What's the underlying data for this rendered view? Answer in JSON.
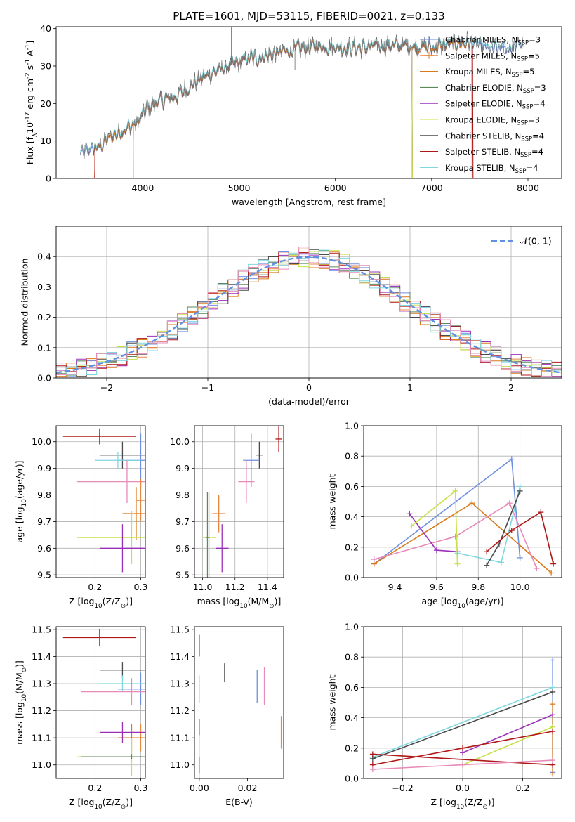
{
  "figure": {
    "title": "PLATE=1601, MJD=53115, FIBERID=0021, z=0.133"
  },
  "colors": {
    "chabrier_miles": "#6f8fe0",
    "salpeter_miles": "#e8873f",
    "kroupa_miles": "#d97a1c",
    "chabrier_elodie": "#5a8a5a",
    "salpeter_elodie": "#9b30b8",
    "kroupa_elodie": "#c8e04a",
    "chabrier_stelib": "#4a4a4a",
    "salpeter_stelib": "#b01818",
    "kroupa_stelib": "#7fd8e0",
    "pink": "#e88ab8",
    "normal_curve": "#6090e0",
    "grid": "#b0b0b0"
  },
  "chart_data": [
    {
      "id": "spectrum",
      "type": "line",
      "xlabel": "wavelength [Angstrom, rest frame]",
      "ylabel": "Flux [f$_\\lambda$10$^{-17}$ erg cm$^{-2}$ s$^{-1}$ A$^{-1}$]",
      "xlim": [
        3100,
        8350
      ],
      "ylim": [
        0,
        40.5
      ],
      "xticks": [
        4000,
        5000,
        6000,
        7000,
        8000
      ],
      "yticks": [
        0,
        10,
        20,
        30,
        40
      ],
      "grid": false,
      "legend_position": "upper-right",
      "legend": [
        {
          "label": "Chabrier MILES, N",
          "sub": "SSP",
          "suffix": "=3",
          "color": "chabrier_miles",
          "marker": "+"
        },
        {
          "label": "Salpeter MILES, N",
          "sub": "SSP",
          "suffix": "=5",
          "color": "salpeter_miles",
          "marker": "+"
        },
        {
          "label": "Kroupa MILES, N",
          "sub": "SSP",
          "suffix": "=5",
          "color": "kroupa_miles",
          "marker": ""
        },
        {
          "label": "Chabrier ELODIE, N",
          "sub": "SSP",
          "suffix": "=3",
          "color": "chabrier_elodie",
          "marker": ""
        },
        {
          "label": "Salpeter ELODIE, N",
          "sub": "SSP",
          "suffix": "=4",
          "color": "salpeter_elodie",
          "marker": ""
        },
        {
          "label": "Kroupa ELODIE, N",
          "sub": "SSP",
          "suffix": "=3",
          "color": "kroupa_elodie",
          "marker": ""
        },
        {
          "label": "Chabrier STELIB, N",
          "sub": "SSP",
          "suffix": "=4",
          "color": "chabrier_stelib",
          "marker": ""
        },
        {
          "label": "Salpeter STELIB, N",
          "sub": "SSP",
          "suffix": "=4",
          "color": "salpeter_stelib",
          "marker": ""
        },
        {
          "label": "Kroupa STELIB, N",
          "sub": "SSP",
          "suffix": "=4",
          "color": "kroupa_stelib",
          "marker": ""
        }
      ],
      "continuum": [
        [
          3350,
          6.5
        ],
        [
          3450,
          8
        ],
        [
          3550,
          8.5
        ],
        [
          3650,
          11
        ],
        [
          3800,
          13
        ],
        [
          3950,
          15
        ],
        [
          4050,
          19
        ],
        [
          4200,
          21
        ],
        [
          4350,
          22
        ],
        [
          4500,
          25
        ],
        [
          4700,
          28
        ],
        [
          4900,
          30
        ],
        [
          5100,
          32
        ],
        [
          5300,
          33
        ],
        [
          5500,
          34
        ],
        [
          5700,
          35
        ],
        [
          5900,
          35.5
        ],
        [
          6100,
          35
        ],
        [
          6300,
          35
        ],
        [
          6500,
          35.5
        ],
        [
          6800,
          35.5
        ],
        [
          7000,
          35
        ],
        [
          7200,
          36
        ],
        [
          7400,
          36.5
        ],
        [
          7600,
          34.5
        ],
        [
          7800,
          35
        ],
        [
          7950,
          36.5
        ]
      ],
      "spikes": [
        [
          4920,
          41
        ],
        [
          5590,
          41
        ],
        [
          5580,
          29
        ],
        [
          5050,
          30
        ]
      ]
    },
    {
      "id": "residuals",
      "type": "line",
      "xlabel": "(data-model)/error",
      "ylabel": "Normed distribution",
      "xlim": [
        -2.5,
        2.5
      ],
      "ylim": [
        0,
        0.5
      ],
      "xticks": [
        -2,
        -1,
        0,
        1,
        2
      ],
      "yticks": [
        0.0,
        0.1,
        0.2,
        0.3,
        0.4
      ],
      "grid": true,
      "legend_position": "upper-right",
      "legend": [
        {
          "label": "$\\mathcal{N}(0, 1)$",
          "color": "normal_curve",
          "dashed": true
        }
      ]
    },
    {
      "id": "age_vs_Z",
      "type": "scatter",
      "xlabel": "Z [log$_{10}$(Z/Z$_\\odot$)]",
      "ylabel": "age  [log$_{10}$(age/yr)]",
      "xlim": [
        0.115,
        0.31
      ],
      "ylim": [
        9.49,
        10.06
      ],
      "xticks": [
        0.2,
        0.3
      ],
      "yticks": [
        9.5,
        9.6,
        9.7,
        9.8,
        9.9,
        10.0
      ],
      "grid": true,
      "points": [
        {
          "x": 0.21,
          "y": 10.02,
          "ex": 0.08,
          "ey": 0.03,
          "color": "salpeter_stelib"
        },
        {
          "x": 0.26,
          "y": 9.95,
          "ex": 0.05,
          "ey": 0.05,
          "color": "chabrier_stelib"
        },
        {
          "x": 0.3,
          "y": 9.93,
          "ex": 0.05,
          "ey": 0.1,
          "color": "chabrier_miles"
        },
        {
          "x": 0.25,
          "y": 9.93,
          "ex": 0.05,
          "ey": 0.03,
          "color": "kroupa_stelib"
        },
        {
          "x": 0.27,
          "y": 9.85,
          "ex": 0.11,
          "ey": 0.08,
          "color": "pink"
        },
        {
          "x": 0.29,
          "y": 9.73,
          "ex": 0.03,
          "ey": 0.1,
          "color": "kroupa_miles"
        },
        {
          "x": 0.3,
          "y": 9.78,
          "ex": 0.01,
          "ey": 0.08,
          "color": "salpeter_miles"
        },
        {
          "x": 0.28,
          "y": 9.64,
          "ex": 0.12,
          "ey": 0.1,
          "color": "kroupa_elodie"
        },
        {
          "x": 0.26,
          "y": 9.6,
          "ex": 0.05,
          "ey": 0.09,
          "color": "salpeter_elodie"
        }
      ]
    },
    {
      "id": "age_vs_mass",
      "type": "scatter",
      "xlabel": "mass [log$_{10}$(M/M$_\\odot$)]",
      "ylabel": "",
      "xlim": [
        10.95,
        11.5
      ],
      "ylim": [
        9.49,
        10.06
      ],
      "xticks": [
        11.0,
        11.2,
        11.4
      ],
      "yticks": [
        9.5,
        9.6,
        9.7,
        9.8,
        9.9,
        10.0
      ],
      "grid": true,
      "points": [
        {
          "x": 11.47,
          "y": 10.01,
          "ex": 0.02,
          "ey": 0.05,
          "color": "salpeter_stelib"
        },
        {
          "x": 11.35,
          "y": 9.95,
          "ex": 0.02,
          "ey": 0.05,
          "color": "chabrier_stelib"
        },
        {
          "x": 11.3,
          "y": 9.93,
          "ex": 0.05,
          "ey": 0.1,
          "color": "chabrier_miles"
        },
        {
          "x": 11.27,
          "y": 9.85,
          "ex": 0.05,
          "ey": 0.08,
          "color": "pink"
        },
        {
          "x": 11.1,
          "y": 9.73,
          "ex": 0.04,
          "ey": 0.07,
          "color": "salpeter_miles"
        },
        {
          "x": 11.04,
          "y": 9.64,
          "ex": 0.04,
          "ey": 0.17,
          "color": "kroupa_elodie"
        },
        {
          "x": 11.03,
          "y": 9.64,
          "ex": 0.01,
          "ey": 0.17,
          "color": "chabrier_elodie"
        },
        {
          "x": 11.12,
          "y": 9.6,
          "ex": 0.04,
          "ey": 0.09,
          "color": "salpeter_elodie"
        }
      ]
    },
    {
      "id": "weight_vs_age",
      "type": "line",
      "xlabel": "age  [log$_{10}$(age/yr)]",
      "ylabel": "mass weight",
      "xlim": [
        9.25,
        10.2
      ],
      "ylim": [
        0,
        1
      ],
      "xticks": [
        9.4,
        9.6,
        9.8,
        10.0
      ],
      "yticks": [
        0.0,
        0.2,
        0.4,
        0.6,
        0.8,
        1.0
      ],
      "grid": true,
      "series": [
        {
          "color": "chabrier_miles",
          "x": [
            9.3,
            9.96,
            10.0
          ],
          "y": [
            0.09,
            0.78,
            0.13
          ]
        },
        {
          "color": "kroupa_miles",
          "x": [
            9.3,
            9.77,
            10.15
          ],
          "y": [
            0.09,
            0.49,
            0.03
          ]
        },
        {
          "color": "pink",
          "x": [
            9.3,
            9.69,
            9.95,
            10.08
          ],
          "y": [
            0.12,
            0.27,
            0.49,
            0.06
          ]
        },
        {
          "color": "salpeter_elodie",
          "x": [
            9.47,
            9.6,
            9.7
          ],
          "y": [
            0.42,
            0.18,
            0.17
          ]
        },
        {
          "color": "kroupa_elodie",
          "x": [
            9.48,
            9.69,
            9.7
          ],
          "y": [
            0.34,
            0.57,
            0.09
          ]
        },
        {
          "color": "kroupa_stelib",
          "x": [
            9.7,
            9.91,
            10.0
          ],
          "y": [
            0.16,
            0.1,
            0.6
          ]
        },
        {
          "color": "chabrier_stelib",
          "x": [
            9.84,
            9.9,
            10.0
          ],
          "y": [
            0.08,
            0.22,
            0.57
          ]
        },
        {
          "color": "salpeter_stelib",
          "x": [
            9.84,
            9.96,
            10.1,
            10.16
          ],
          "y": [
            0.17,
            0.31,
            0.43,
            0.09
          ]
        }
      ]
    },
    {
      "id": "mass_vs_Z",
      "type": "scatter",
      "xlabel": "Z [log$_{10}$(Z/Z$_\\odot$)]",
      "ylabel": "mass [log$_{10}$(M/M$_\\odot$)]",
      "xlim": [
        0.115,
        0.31
      ],
      "ylim": [
        10.95,
        11.51
      ],
      "xticks": [
        0.2,
        0.3
      ],
      "yticks": [
        11.0,
        11.1,
        11.2,
        11.3,
        11.4,
        11.5
      ],
      "grid": true,
      "points": [
        {
          "x": 0.21,
          "y": 11.47,
          "ex": 0.08,
          "ey": 0.03,
          "color": "salpeter_stelib"
        },
        {
          "x": 0.26,
          "y": 11.35,
          "ex": 0.05,
          "ey": 0.03,
          "color": "chabrier_stelib"
        },
        {
          "x": 0.3,
          "y": 11.28,
          "ex": 0.05,
          "ey": 0.06,
          "color": "chabrier_miles"
        },
        {
          "x": 0.26,
          "y": 11.3,
          "ex": 0.05,
          "ey": 0.03,
          "color": "kroupa_stelib"
        },
        {
          "x": 0.28,
          "y": 11.27,
          "ex": 0.11,
          "ey": 0.05,
          "color": "pink"
        },
        {
          "x": 0.3,
          "y": 11.1,
          "ex": 0.01,
          "ey": 0.05,
          "color": "salpeter_miles"
        },
        {
          "x": 0.28,
          "y": 11.1,
          "ex": 0.03,
          "ey": 0.05,
          "color": "kroupa_miles"
        },
        {
          "x": 0.26,
          "y": 11.12,
          "ex": 0.05,
          "ey": 0.04,
          "color": "salpeter_elodie"
        },
        {
          "x": 0.28,
          "y": 11.03,
          "ex": 0.12,
          "ey": 0.07,
          "color": "kroupa_elodie"
        },
        {
          "x": 0.28,
          "y": 11.03,
          "ex": 0.11,
          "ey": 0.01,
          "color": "chabrier_elodie"
        }
      ]
    },
    {
      "id": "mass_vs_ebv",
      "type": "scatter",
      "xlabel": "E(B-V)",
      "ylabel": "",
      "xlim": [
        -0.002,
        0.035
      ],
      "ylim": [
        10.95,
        11.51
      ],
      "xticks": [
        0.0,
        0.02
      ],
      "yticks": [
        11.0,
        11.1,
        11.2,
        11.3,
        11.4,
        11.5
      ],
      "grid": false,
      "points": [
        {
          "x": 0.0,
          "y": 11.44,
          "ex": 0,
          "ey": 0.04,
          "color": "salpeter_stelib"
        },
        {
          "x": 0.0,
          "y": 11.28,
          "ex": 0,
          "ey": 0.05,
          "color": "kroupa_stelib"
        },
        {
          "x": 0.0,
          "y": 11.12,
          "ex": 0,
          "ey": 0.05,
          "color": "salpeter_elodie"
        },
        {
          "x": 0.0,
          "y": 11.03,
          "ex": 0,
          "ey": 0.08,
          "color": "kroupa_elodie"
        },
        {
          "x": 0.0,
          "y": 11.0,
          "ex": 0,
          "ey": 0.03,
          "color": "chabrier_elodie"
        },
        {
          "x": 0.0105,
          "y": 11.34,
          "ex": 0,
          "ey": 0.035,
          "color": "chabrier_stelib"
        },
        {
          "x": 0.024,
          "y": 11.29,
          "ex": 0,
          "ey": 0.06,
          "color": "chabrier_miles"
        },
        {
          "x": 0.027,
          "y": 11.29,
          "ex": 0,
          "ey": 0.07,
          "color": "pink"
        },
        {
          "x": 0.034,
          "y": 11.12,
          "ex": 0,
          "ey": 0.06,
          "color": "salpeter_miles"
        }
      ]
    },
    {
      "id": "weight_vs_Z",
      "type": "line",
      "xlabel": "Z [log$_{10}$(Z/Z$_\\odot$)]",
      "ylabel": "mass weight",
      "xlim": [
        -0.33,
        0.33
      ],
      "ylim": [
        0,
        1
      ],
      "xticks": [
        -0.2,
        0.0,
        0.2
      ],
      "yticks": [
        0.0,
        0.2,
        0.4,
        0.6,
        0.8,
        1.0
      ],
      "grid": true,
      "series": [
        {
          "color": "chabrier_miles",
          "x": [
            0.3,
            0.3
          ],
          "y": [
            0.04,
            0.78
          ]
        },
        {
          "color": "kroupa_miles",
          "x": [
            0.3,
            0.3
          ],
          "y": [
            0.03,
            0.49
          ]
        },
        {
          "color": "kroupa_stelib",
          "x": [
            -0.3,
            0.3
          ],
          "y": [
            0.14,
            0.6
          ]
        },
        {
          "color": "chabrier_stelib",
          "x": [
            -0.3,
            0.3
          ],
          "y": [
            0.13,
            0.57
          ]
        },
        {
          "color": "salpeter_elodie",
          "x": [
            0.0,
            0.3
          ],
          "y": [
            0.17,
            0.42
          ]
        },
        {
          "color": "kroupa_elodie",
          "x": [
            0.0,
            0.3
          ],
          "y": [
            0.09,
            0.34
          ]
        },
        {
          "color": "salpeter_stelib",
          "x": [
            -0.3,
            0.3
          ],
          "y": [
            0.16,
            0.09
          ]
        },
        {
          "color": "salpeter_stelib",
          "x": [
            -0.3,
            0.0,
            0.3
          ],
          "y": [
            0.09,
            0.2,
            0.31
          ]
        },
        {
          "color": "pink",
          "x": [
            -0.3,
            0.0,
            0.3
          ],
          "y": [
            0.06,
            0.09,
            0.12
          ]
        }
      ]
    }
  ]
}
